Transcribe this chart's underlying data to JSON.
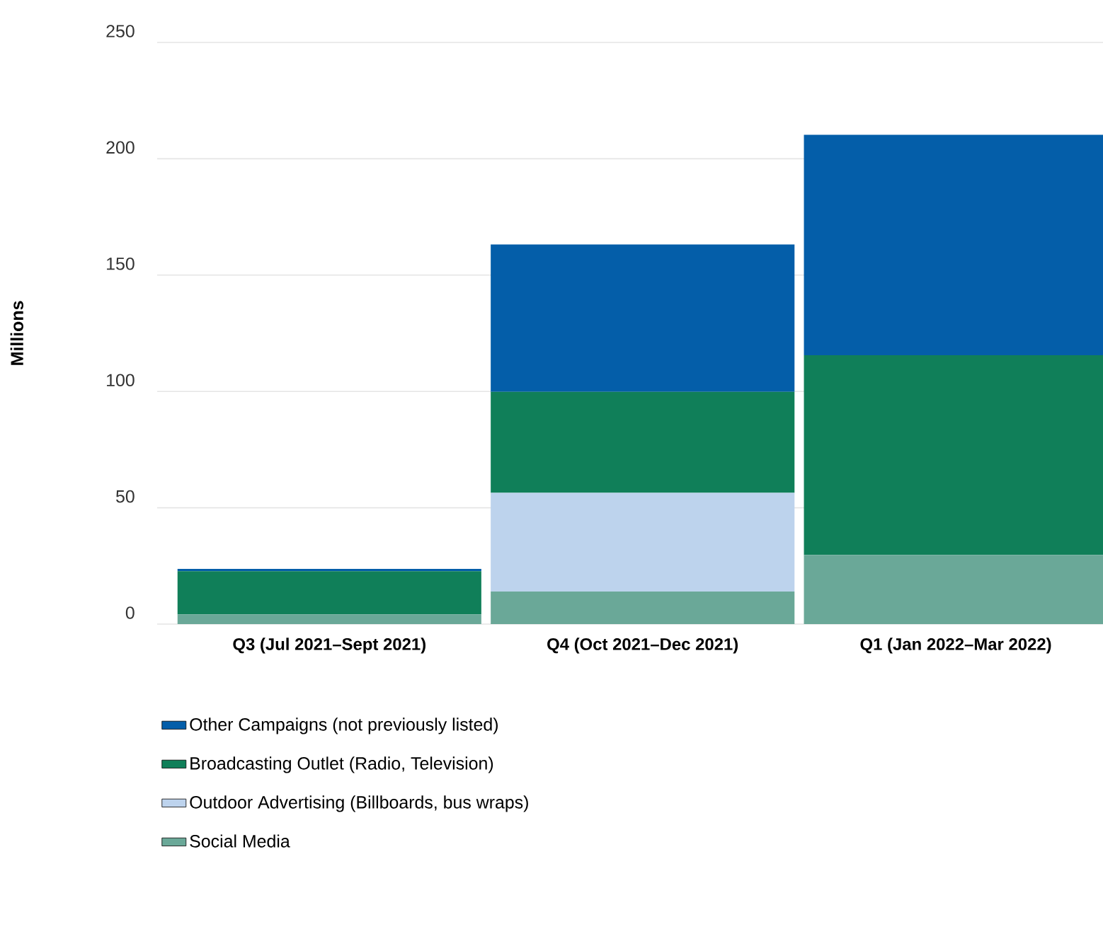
{
  "chart_data": {
    "type": "bar",
    "stacked": true,
    "ylabel": "Millions",
    "categories": [
      "Q3 (Jul 2021–Sept 2021)",
      "Q4 (Oct 2021–Dec 2021)",
      "Q1 (Jan 2022–Mar 2022)"
    ],
    "series": [
      {
        "name": "Social Media",
        "color": "#6aa898",
        "values": [
          4.2,
          14,
          29.7
        ]
      },
      {
        "name": "Outdoor Advertising (Billboards, bus wraps)",
        "color": "#bdd3ed",
        "values": [
          0,
          42.4,
          0
        ]
      },
      {
        "name": "Broadcasting Outlet (Radio, Television)",
        "color": "#107f59",
        "values": [
          18.5,
          43.4,
          85.9
        ]
      },
      {
        "name": "Other Campaigns (not previously listed)",
        "color": "#045ea9",
        "values": [
          1,
          63.4,
          94.7
        ]
      }
    ],
    "ylim": [
      0,
      250
    ],
    "yticks": [
      0,
      50,
      100,
      150,
      200,
      250
    ],
    "grid": "y",
    "legend": "bottom"
  }
}
